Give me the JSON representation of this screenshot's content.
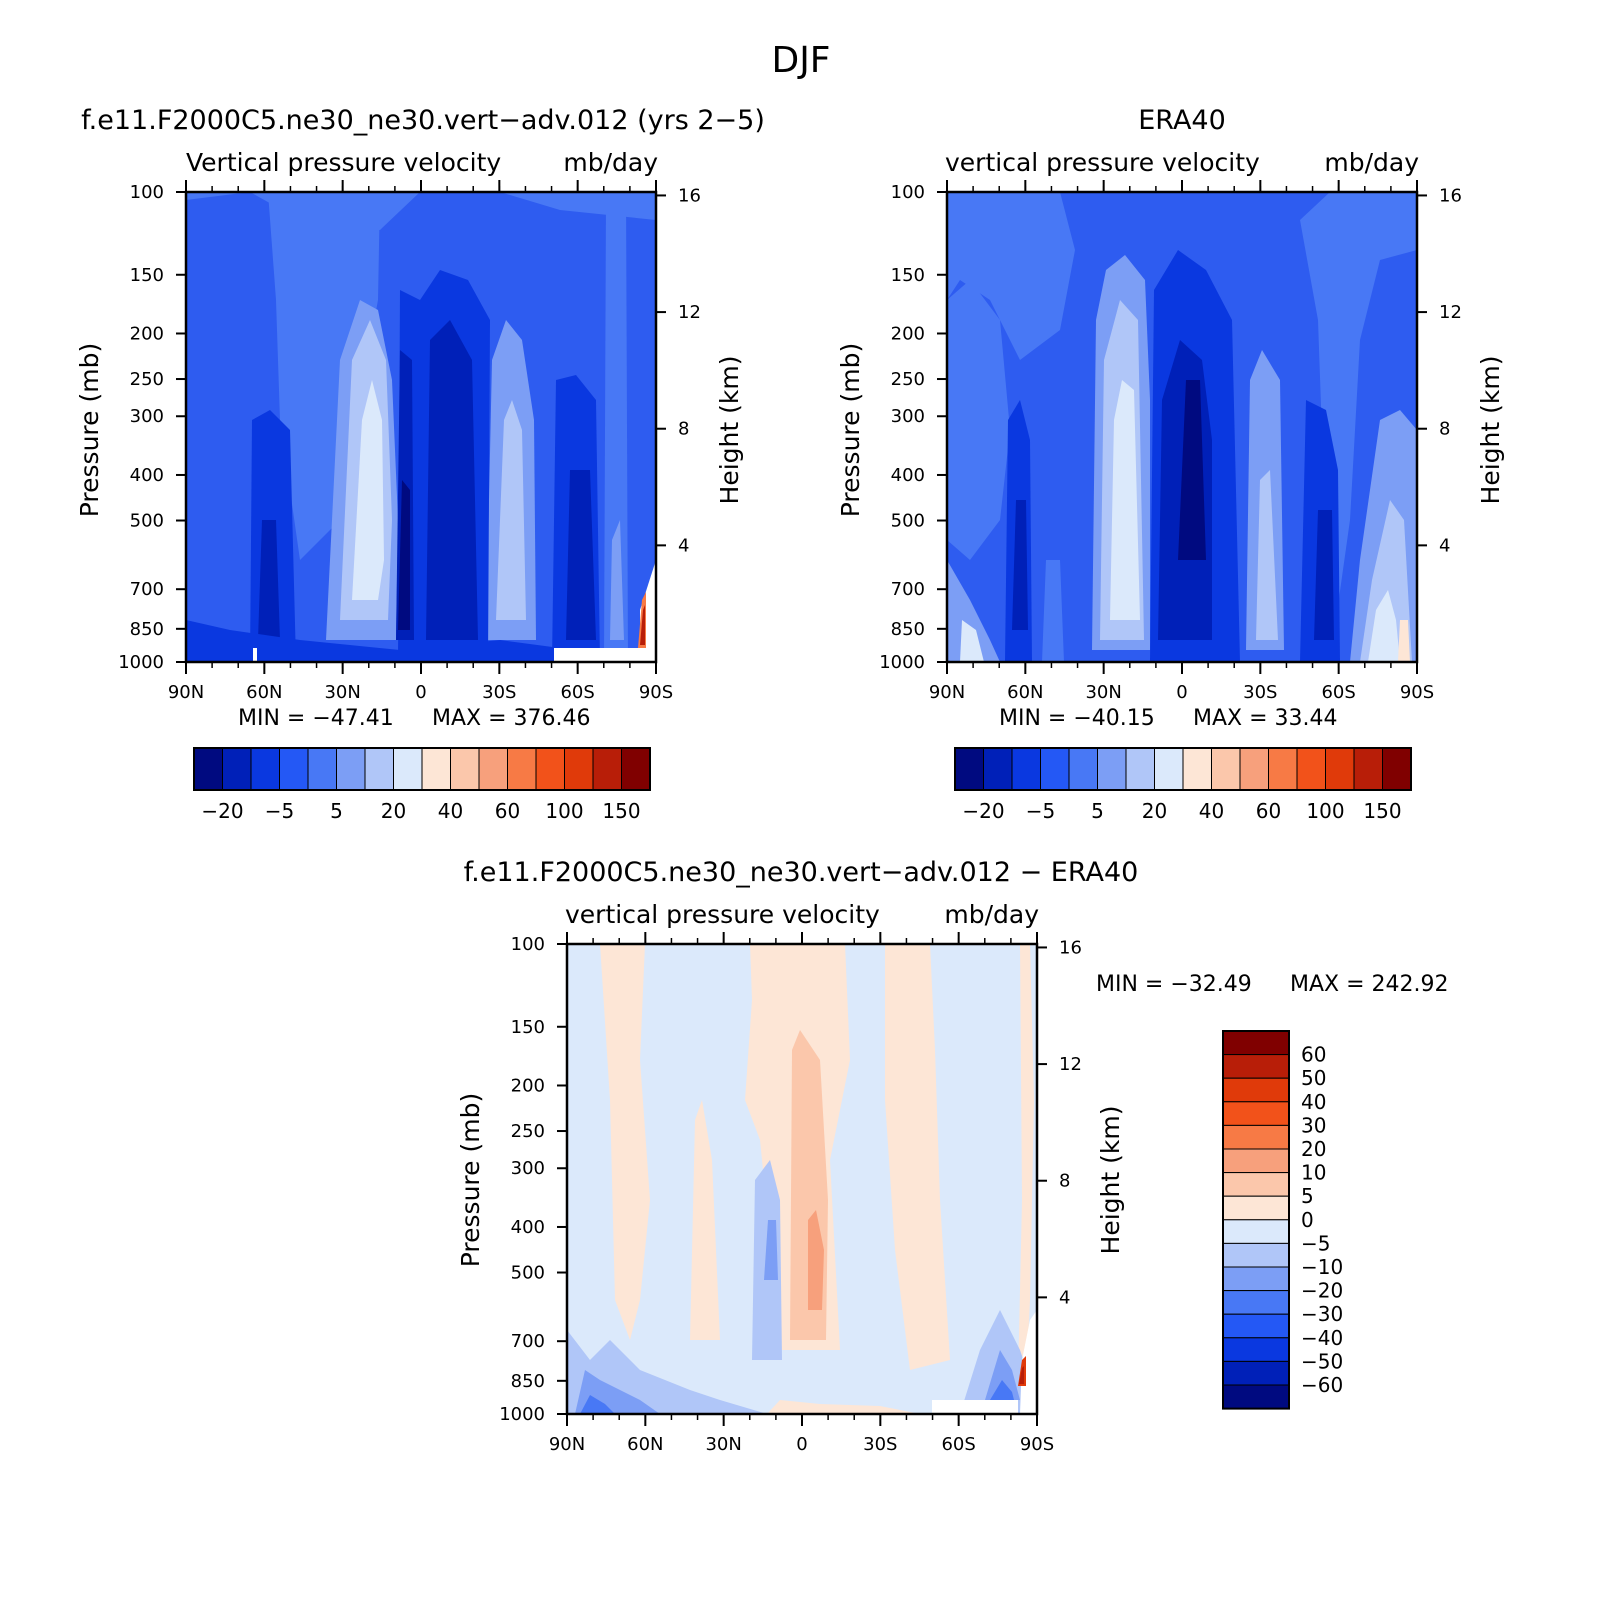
{
  "figure_title": "DJF",
  "colors": {
    "blue_scale": [
      "#000a80",
      "#0020b8",
      "#0a38e0",
      "#2458f5",
      "#4878f5",
      "#7c9ef5",
      "#b0c6f8",
      "#dbe9fb"
    ],
    "red_scale": [
      "#fde6d6",
      "#fbc7ab",
      "#f7a07c",
      "#f77a45",
      "#f2521a",
      "#e03a0a",
      "#b81e08",
      "#800000"
    ],
    "model_bg": "#2e5cf0",
    "diff_bg": "#dbe9fb"
  },
  "chart_data": [
    {
      "type": "heatmap",
      "name": "model",
      "title": "f.e11.F2000C5.ne30_ne30.vert−adv.012 (yrs 2−5)",
      "subtitle_left": "Vertical pressure velocity",
      "subtitle_right": "mb/day",
      "x_ticks": [
        "90N",
        "60N",
        "30N",
        "0",
        "30S",
        "60S",
        "90S"
      ],
      "x_values": [
        90,
        60,
        30,
        0,
        -30,
        -60,
        -90
      ],
      "ylabel": "Pressure (mb)",
      "y_ticks": [
        100,
        150,
        200,
        250,
        300,
        400,
        500,
        700,
        850,
        1000
      ],
      "ylim": [
        1000,
        100
      ],
      "y_scale": "log",
      "y2label": "Height (km)",
      "y2_ticks": [
        16,
        12,
        8,
        4
      ],
      "min_label": "MIN = −47.41",
      "max_label": "MAX = 376.46",
      "colorbar": {
        "orientation": "horizontal",
        "labels": [
          "−20",
          "−5",
          "5",
          "20",
          "40",
          "60",
          "100",
          "150"
        ]
      }
    },
    {
      "type": "heatmap",
      "name": "obs",
      "title": "ERA40",
      "subtitle_left": "vertical pressure velocity",
      "subtitle_right": "mb/day",
      "x_ticks": [
        "90N",
        "60N",
        "30N",
        "0",
        "30S",
        "60S",
        "90S"
      ],
      "x_values": [
        90,
        60,
        30,
        0,
        -30,
        -60,
        -90
      ],
      "ylabel": "Pressure (mb)",
      "y_ticks": [
        100,
        150,
        200,
        250,
        300,
        400,
        500,
        700,
        850,
        1000
      ],
      "ylim": [
        1000,
        100
      ],
      "y_scale": "log",
      "y2label": "Height (km)",
      "y2_ticks": [
        16,
        12,
        8,
        4
      ],
      "min_label": "MIN = −40.15",
      "max_label": "MAX =  33.44",
      "colorbar": {
        "orientation": "horizontal",
        "labels": [
          "−20",
          "−5",
          "5",
          "20",
          "40",
          "60",
          "100",
          "150"
        ]
      }
    },
    {
      "type": "heatmap",
      "name": "difference",
      "title": "f.e11.F2000C5.ne30_ne30.vert−adv.012 − ERA40",
      "subtitle_left": "vertical pressure velocity",
      "subtitle_right": "mb/day",
      "x_ticks": [
        "90N",
        "60N",
        "30N",
        "0",
        "30S",
        "60S",
        "90S"
      ],
      "x_values": [
        90,
        60,
        30,
        0,
        -30,
        -60,
        -90
      ],
      "ylabel": "Pressure (mb)",
      "y_ticks": [
        100,
        150,
        200,
        250,
        300,
        400,
        500,
        700,
        850,
        1000
      ],
      "ylim": [
        1000,
        100
      ],
      "y_scale": "log",
      "y2label": "Height (km)",
      "y2_ticks": [
        16,
        12,
        8,
        4
      ],
      "min_label": "MIN = −32.49",
      "max_label": "MAX = 242.92",
      "colorbar": {
        "orientation": "vertical",
        "labels": [
          "60",
          "50",
          "40",
          "30",
          "20",
          "10",
          "5",
          "0",
          "−5",
          "−10",
          "−20",
          "−30",
          "−40",
          "−50",
          "−60"
        ]
      }
    }
  ]
}
